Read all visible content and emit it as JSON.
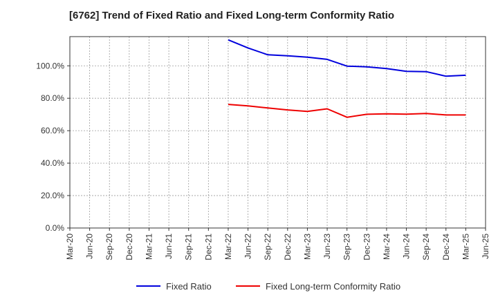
{
  "chart_data": {
    "type": "line",
    "title": "[6762]  Trend of Fixed Ratio and Fixed Long-term Conformity Ratio",
    "x_ticks": [
      "Mar-20",
      "Jun-20",
      "Sep-20",
      "Dec-20",
      "Mar-21",
      "Jun-21",
      "Sep-21",
      "Dec-21",
      "Mar-22",
      "Jun-22",
      "Sep-22",
      "Dec-22",
      "Mar-23",
      "Jun-23",
      "Sep-23",
      "Dec-23",
      "Mar-24",
      "Jun-24",
      "Sep-24",
      "Dec-24",
      "Mar-25",
      "Jun-25"
    ],
    "y_ticks": [
      "0.0%",
      "20.0%",
      "40.0%",
      "60.0%",
      "80.0%",
      "100.0%"
    ],
    "ylim": [
      0,
      118
    ],
    "grid": true,
    "legend_position": "bottom",
    "categories": [
      "Mar-22",
      "Jun-22",
      "Sep-22",
      "Dec-22",
      "Mar-23",
      "Jun-23",
      "Sep-23",
      "Dec-23",
      "Mar-24",
      "Jun-24",
      "Sep-24",
      "Dec-24",
      "Mar-25"
    ],
    "series": [
      {
        "name": "Fixed Ratio",
        "color": "#0000dd",
        "values": [
          116.0,
          111.0,
          106.8,
          106.2,
          105.3,
          104.0,
          99.8,
          99.4,
          98.3,
          96.6,
          96.4,
          93.6,
          94.2
        ]
      },
      {
        "name": "Fixed Long-term Conformity Ratio",
        "color": "#ee0000",
        "values": [
          76.2,
          75.3,
          74.0,
          72.8,
          71.9,
          73.5,
          68.3,
          70.1,
          70.4,
          70.2,
          70.6,
          69.7,
          69.7
        ]
      }
    ]
  }
}
